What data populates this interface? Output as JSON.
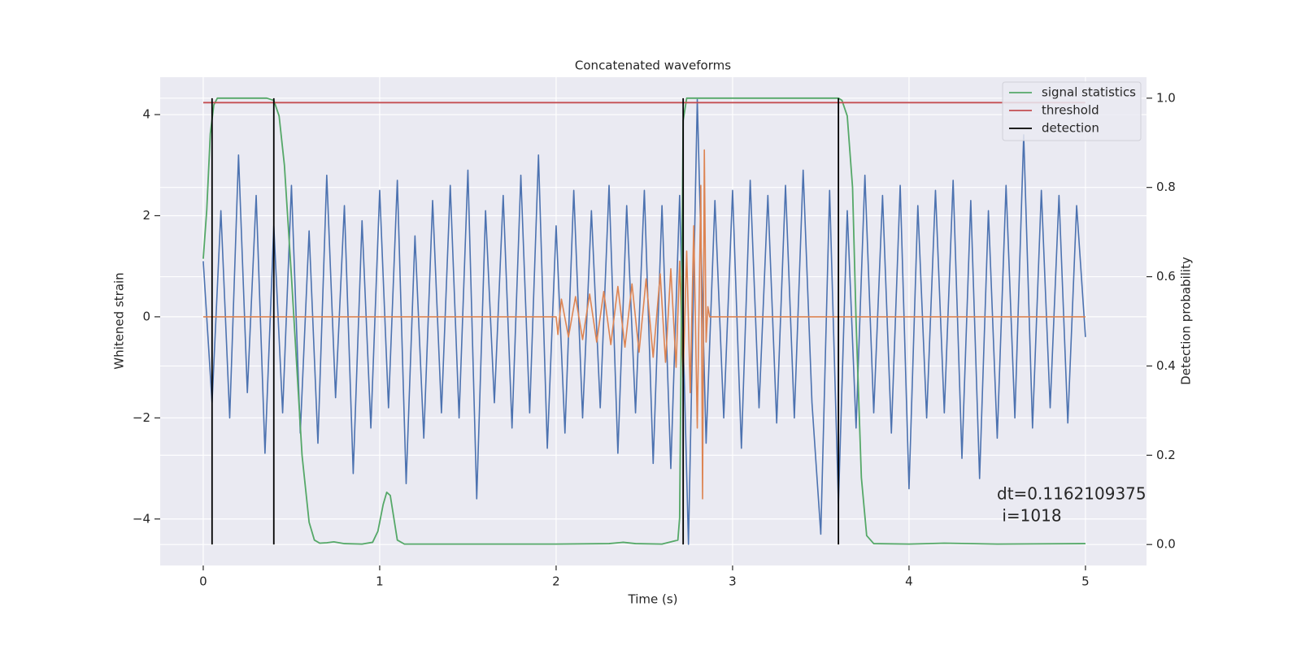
{
  "chart_data": {
    "type": "line",
    "title": "Concatenated waveforms",
    "xlabel": "Time (s)",
    "ylabel": "Whitened strain",
    "y2label": "Detection probability",
    "xlim": [
      -0.244,
      5.346
    ],
    "ylim": [
      -4.92,
      4.74
    ],
    "y2lim": [
      -0.047,
      1.047
    ],
    "xticks": [
      0,
      1,
      2,
      3,
      4,
      5
    ],
    "yticks": [
      {
        "value": -4,
        "label": "−4"
      },
      {
        "value": -2,
        "label": "−2"
      },
      0,
      2,
      4
    ],
    "y2ticks": [
      {
        "value": 0,
        "label": "0.0"
      },
      0.2,
      0.4,
      0.6,
      0.8,
      {
        "value": 1,
        "label": "1.0"
      }
    ],
    "grid": true,
    "legend": "upper right",
    "annotation": [
      "dt=0.1162109375",
      " i=1018"
    ],
    "series": [
      {
        "name": null,
        "color": "#4c72b0",
        "axis": "y",
        "x": [
          0,
          0.05,
          0.1,
          0.15,
          0.2,
          0.25,
          0.3,
          0.35,
          0.4,
          0.45,
          0.5,
          0.55,
          0.6,
          0.65,
          0.7,
          0.75,
          0.8,
          0.85,
          0.9,
          0.95,
          1,
          1.05,
          1.1,
          1.15,
          1.2,
          1.25,
          1.3,
          1.35,
          1.4,
          1.45,
          1.5,
          1.55,
          1.6,
          1.65,
          1.7,
          1.75,
          1.8,
          1.85,
          1.9,
          1.95,
          2,
          2.05,
          2.1,
          2.15,
          2.2,
          2.25,
          2.3,
          2.35,
          2.4,
          2.45,
          2.5,
          2.55,
          2.6,
          2.65,
          2.7,
          2.75,
          2.8,
          2.85,
          2.9,
          2.95,
          3,
          3.05,
          3.1,
          3.15,
          3.2,
          3.25,
          3.3,
          3.35,
          3.4,
          3.45,
          3.5,
          3.55,
          3.6,
          3.65,
          3.7,
          3.75,
          3.8,
          3.85,
          3.9,
          3.95,
          4,
          4.05,
          4.1,
          4.15,
          4.2,
          4.25,
          4.3,
          4.35,
          4.4,
          4.45,
          4.5,
          4.55,
          4.6,
          4.65,
          4.7,
          4.75,
          4.8,
          4.85,
          4.9,
          4.95,
          5
        ],
        "values": [
          1.1,
          -1.7,
          2.1,
          -2.0,
          3.2,
          -1.5,
          2.4,
          -2.7,
          1.8,
          -1.9,
          2.6,
          -2.3,
          1.7,
          -2.5,
          2.8,
          -1.6,
          2.2,
          -3.1,
          1.9,
          -2.2,
          2.5,
          -1.8,
          2.7,
          -3.3,
          1.6,
          -2.4,
          2.3,
          -1.9,
          2.6,
          -2.0,
          2.9,
          -3.6,
          2.1,
          -1.7,
          2.4,
          -2.2,
          2.8,
          -1.9,
          3.2,
          -2.6,
          1.8,
          -2.3,
          2.5,
          -2.0,
          2.1,
          -1.8,
          2.6,
          -2.7,
          2.2,
          -1.9,
          2.5,
          -2.9,
          2.2,
          -3.0,
          2.4,
          -4.5,
          4.3,
          -2.5,
          2.3,
          -2.0,
          2.5,
          -2.6,
          2.7,
          -1.8,
          2.4,
          -2.1,
          2.6,
          -2.0,
          2.9,
          -1.7,
          -4.3,
          2.5,
          -3.7,
          2.1,
          -2.2,
          2.8,
          -1.9,
          2.4,
          -2.3,
          2.6,
          -3.4,
          2.2,
          -2.0,
          2.5,
          -1.9,
          2.7,
          -2.8,
          2.3,
          -3.2,
          2.1,
          -2.4,
          2.6,
          -2.0,
          3.6,
          -2.2,
          2.5,
          -1.8,
          2.4,
          -2.1,
          2.2,
          -0.4
        ]
      },
      {
        "name": null,
        "color": "#dd8452",
        "axis": "y",
        "x": [
          0,
          2.0,
          2.01,
          2.03,
          2.07,
          2.11,
          2.15,
          2.19,
          2.23,
          2.27,
          2.31,
          2.35,
          2.39,
          2.43,
          2.47,
          2.51,
          2.55,
          2.59,
          2.62,
          2.65,
          2.68,
          2.7,
          2.72,
          2.74,
          2.76,
          2.78,
          2.8,
          2.82,
          2.83,
          2.84,
          2.85,
          2.86,
          2.87,
          5.0
        ],
        "values": [
          0,
          0,
          -0.35,
          0.35,
          -0.4,
          0.4,
          -0.45,
          0.45,
          -0.5,
          0.5,
          -0.55,
          0.6,
          -0.6,
          0.65,
          -0.7,
          0.75,
          -0.8,
          0.85,
          -0.9,
          0.95,
          -1.0,
          1.1,
          -1.2,
          1.3,
          -1.5,
          1.8,
          -2.2,
          2.6,
          -3.6,
          3.3,
          -0.5,
          0.2,
          0,
          0
        ]
      },
      {
        "name": "signal statistics",
        "color": "#55a868",
        "axis": "y2",
        "x": [
          0,
          0.02,
          0.04,
          0.06,
          0.08,
          0.1,
          0.36,
          0.4,
          0.43,
          0.46,
          0.5,
          0.53,
          0.56,
          0.6,
          0.63,
          0.66,
          0.7,
          0.74,
          0.8,
          0.9,
          0.96,
          0.99,
          1.02,
          1.04,
          1.06,
          1.08,
          1.1,
          1.14,
          2.0,
          2.3,
          2.38,
          2.45,
          2.6,
          2.69,
          2.7,
          2.71,
          2.72,
          2.74,
          3.6,
          3.62,
          3.65,
          3.68,
          3.7,
          3.73,
          3.76,
          3.8,
          4.0,
          4.2,
          4.5,
          5.0
        ],
        "values": [
          0.64,
          0.75,
          0.92,
          0.985,
          1.0,
          1.0,
          1.0,
          0.995,
          0.96,
          0.85,
          0.6,
          0.4,
          0.2,
          0.05,
          0.01,
          0.003,
          0.004,
          0.006,
          0.002,
          0.001,
          0.005,
          0.03,
          0.09,
          0.117,
          0.11,
          0.06,
          0.01,
          0.001,
          0.001,
          0.002,
          0.005,
          0.002,
          0.001,
          0.01,
          0.06,
          0.5,
          0.95,
          1.0,
          1.0,
          0.995,
          0.96,
          0.8,
          0.5,
          0.15,
          0.02,
          0.002,
          0.001,
          0.003,
          0.001,
          0.002
        ]
      },
      {
        "name": "threshold",
        "color": "#c44e52",
        "axis": "y2",
        "x": [
          0,
          5
        ],
        "values": [
          0.99,
          0.99
        ]
      },
      {
        "name": "detection",
        "color": "#000000",
        "axis": "y2",
        "stem": true,
        "x": [
          0.05,
          0.4,
          2.72,
          3.6
        ],
        "values": [
          1,
          1,
          1,
          1
        ]
      }
    ]
  }
}
